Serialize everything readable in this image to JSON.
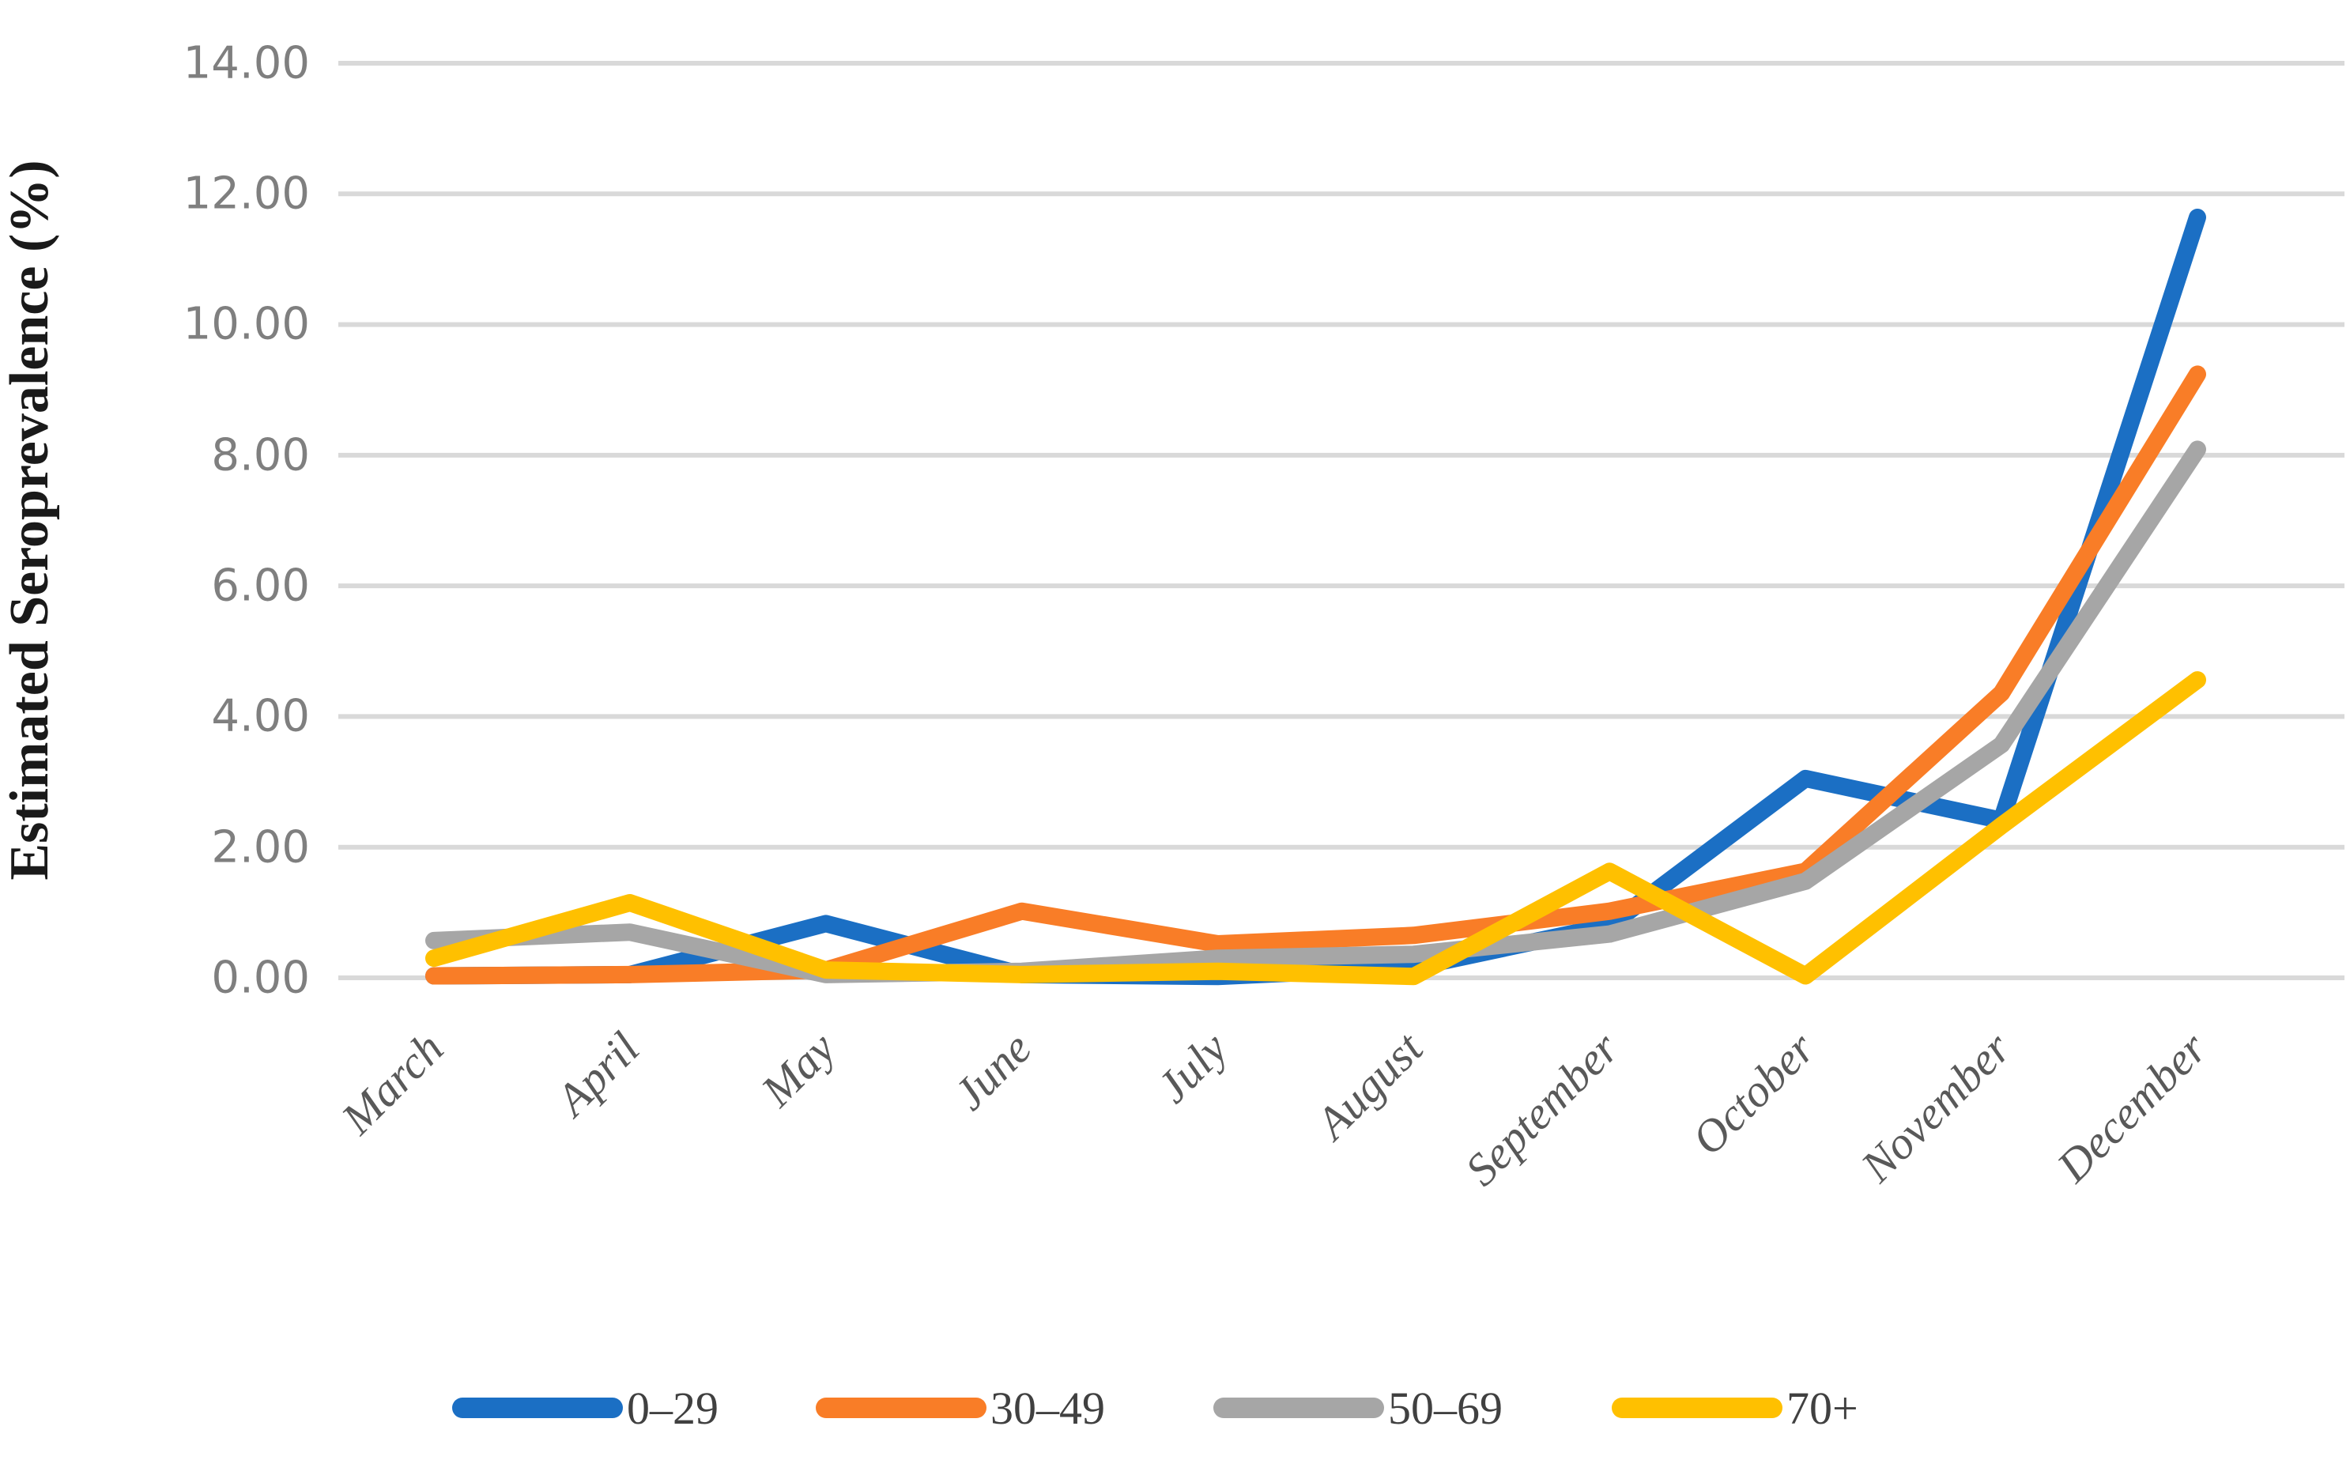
{
  "chart_data": {
    "type": "line",
    "title": "",
    "xlabel": "",
    "ylabel": "Estimated Seroprevalence (%)",
    "ylim": [
      0,
      14
    ],
    "ytick_step": 2,
    "grid": "horizontal",
    "legend_position": "bottom",
    "ytick_labels": [
      "14.00",
      "12.00",
      "10.00",
      "8.00",
      "6.00",
      "4.00",
      "2.00",
      "0.00"
    ],
    "categories": [
      "March",
      "April",
      "May",
      "June",
      "July",
      "August",
      "September",
      "October",
      "November",
      "December"
    ],
    "series": [
      {
        "name": "0–29",
        "color": "#1B6FC4",
        "values": [
          0.03,
          0.05,
          0.83,
          0.05,
          0.02,
          0.16,
          0.8,
          3.05,
          2.41,
          11.64
        ]
      },
      {
        "name": "30–49",
        "color": "#F97D27",
        "values": [
          0.03,
          0.05,
          0.12,
          1.02,
          0.52,
          0.65,
          1.02,
          1.63,
          4.36,
          9.24
        ]
      },
      {
        "name": "50–69",
        "color": "#A6A6A6",
        "values": [
          0.57,
          0.7,
          0.05,
          0.1,
          0.3,
          0.36,
          0.67,
          1.48,
          3.57,
          8.09
        ]
      },
      {
        "name": "70+",
        "color": "#FFC000",
        "values": [
          0.3,
          1.15,
          0.12,
          0.05,
          0.1,
          0.02,
          1.63,
          0.03,
          2.33,
          4.56
        ]
      }
    ]
  },
  "colors": {
    "background": "#FFFFFF",
    "gridline": "#D9D9D9",
    "y_tick_label": "#7F7F7F",
    "x_tick_label": "#595959",
    "axis_title": "#1A1A1A",
    "legend_label": "#404040"
  }
}
